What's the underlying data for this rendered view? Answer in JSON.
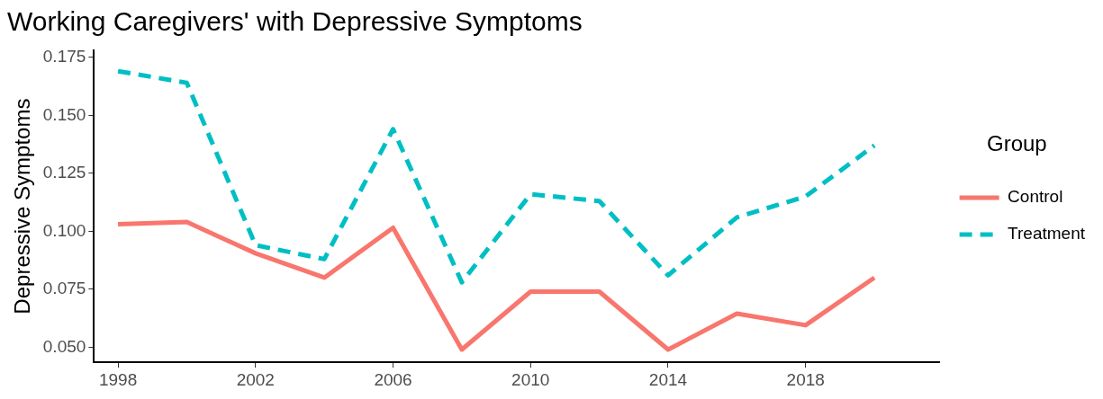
{
  "chart_data": {
    "type": "line",
    "title": "Working Caregivers' with Depressive Symptoms",
    "ylabel": "Depressive Symptoms",
    "legend_title": "Group",
    "legend": "right",
    "grid": false,
    "marker": "none",
    "x": [
      1998,
      2000,
      2002,
      2004,
      2006,
      2008,
      2010,
      2012,
      2014,
      2016,
      2018,
      2020
    ],
    "xlim": [
      1997.3,
      2021.9
    ],
    "xticks": [
      1998,
      2002,
      2006,
      2010,
      2014,
      2018
    ],
    "ylim": [
      0.0435,
      0.178
    ],
    "yticks": [
      {
        "value": 0.05,
        "label": "0.050"
      },
      {
        "value": 0.075,
        "label": "0.075"
      },
      {
        "value": 0.1,
        "label": "0.100"
      },
      {
        "value": 0.125,
        "label": "0.125"
      },
      {
        "value": 0.15,
        "label": "0.150"
      },
      {
        "value": 0.175,
        "label": "0.175"
      }
    ],
    "series": [
      {
        "name": "Control",
        "color": "#f8766d",
        "line_style": "solid",
        "values": [
          0.103,
          0.104,
          0.0905,
          0.08,
          0.1015,
          0.049,
          0.074,
          0.074,
          0.049,
          0.0645,
          0.0595,
          0.08
        ]
      },
      {
        "name": "Treatment",
        "color": "#00bfc4",
        "line_style": "dashed",
        "values": [
          0.169,
          0.164,
          0.094,
          0.088,
          0.144,
          0.078,
          0.116,
          0.113,
          0.081,
          0.106,
          0.115,
          0.137
        ]
      }
    ]
  }
}
